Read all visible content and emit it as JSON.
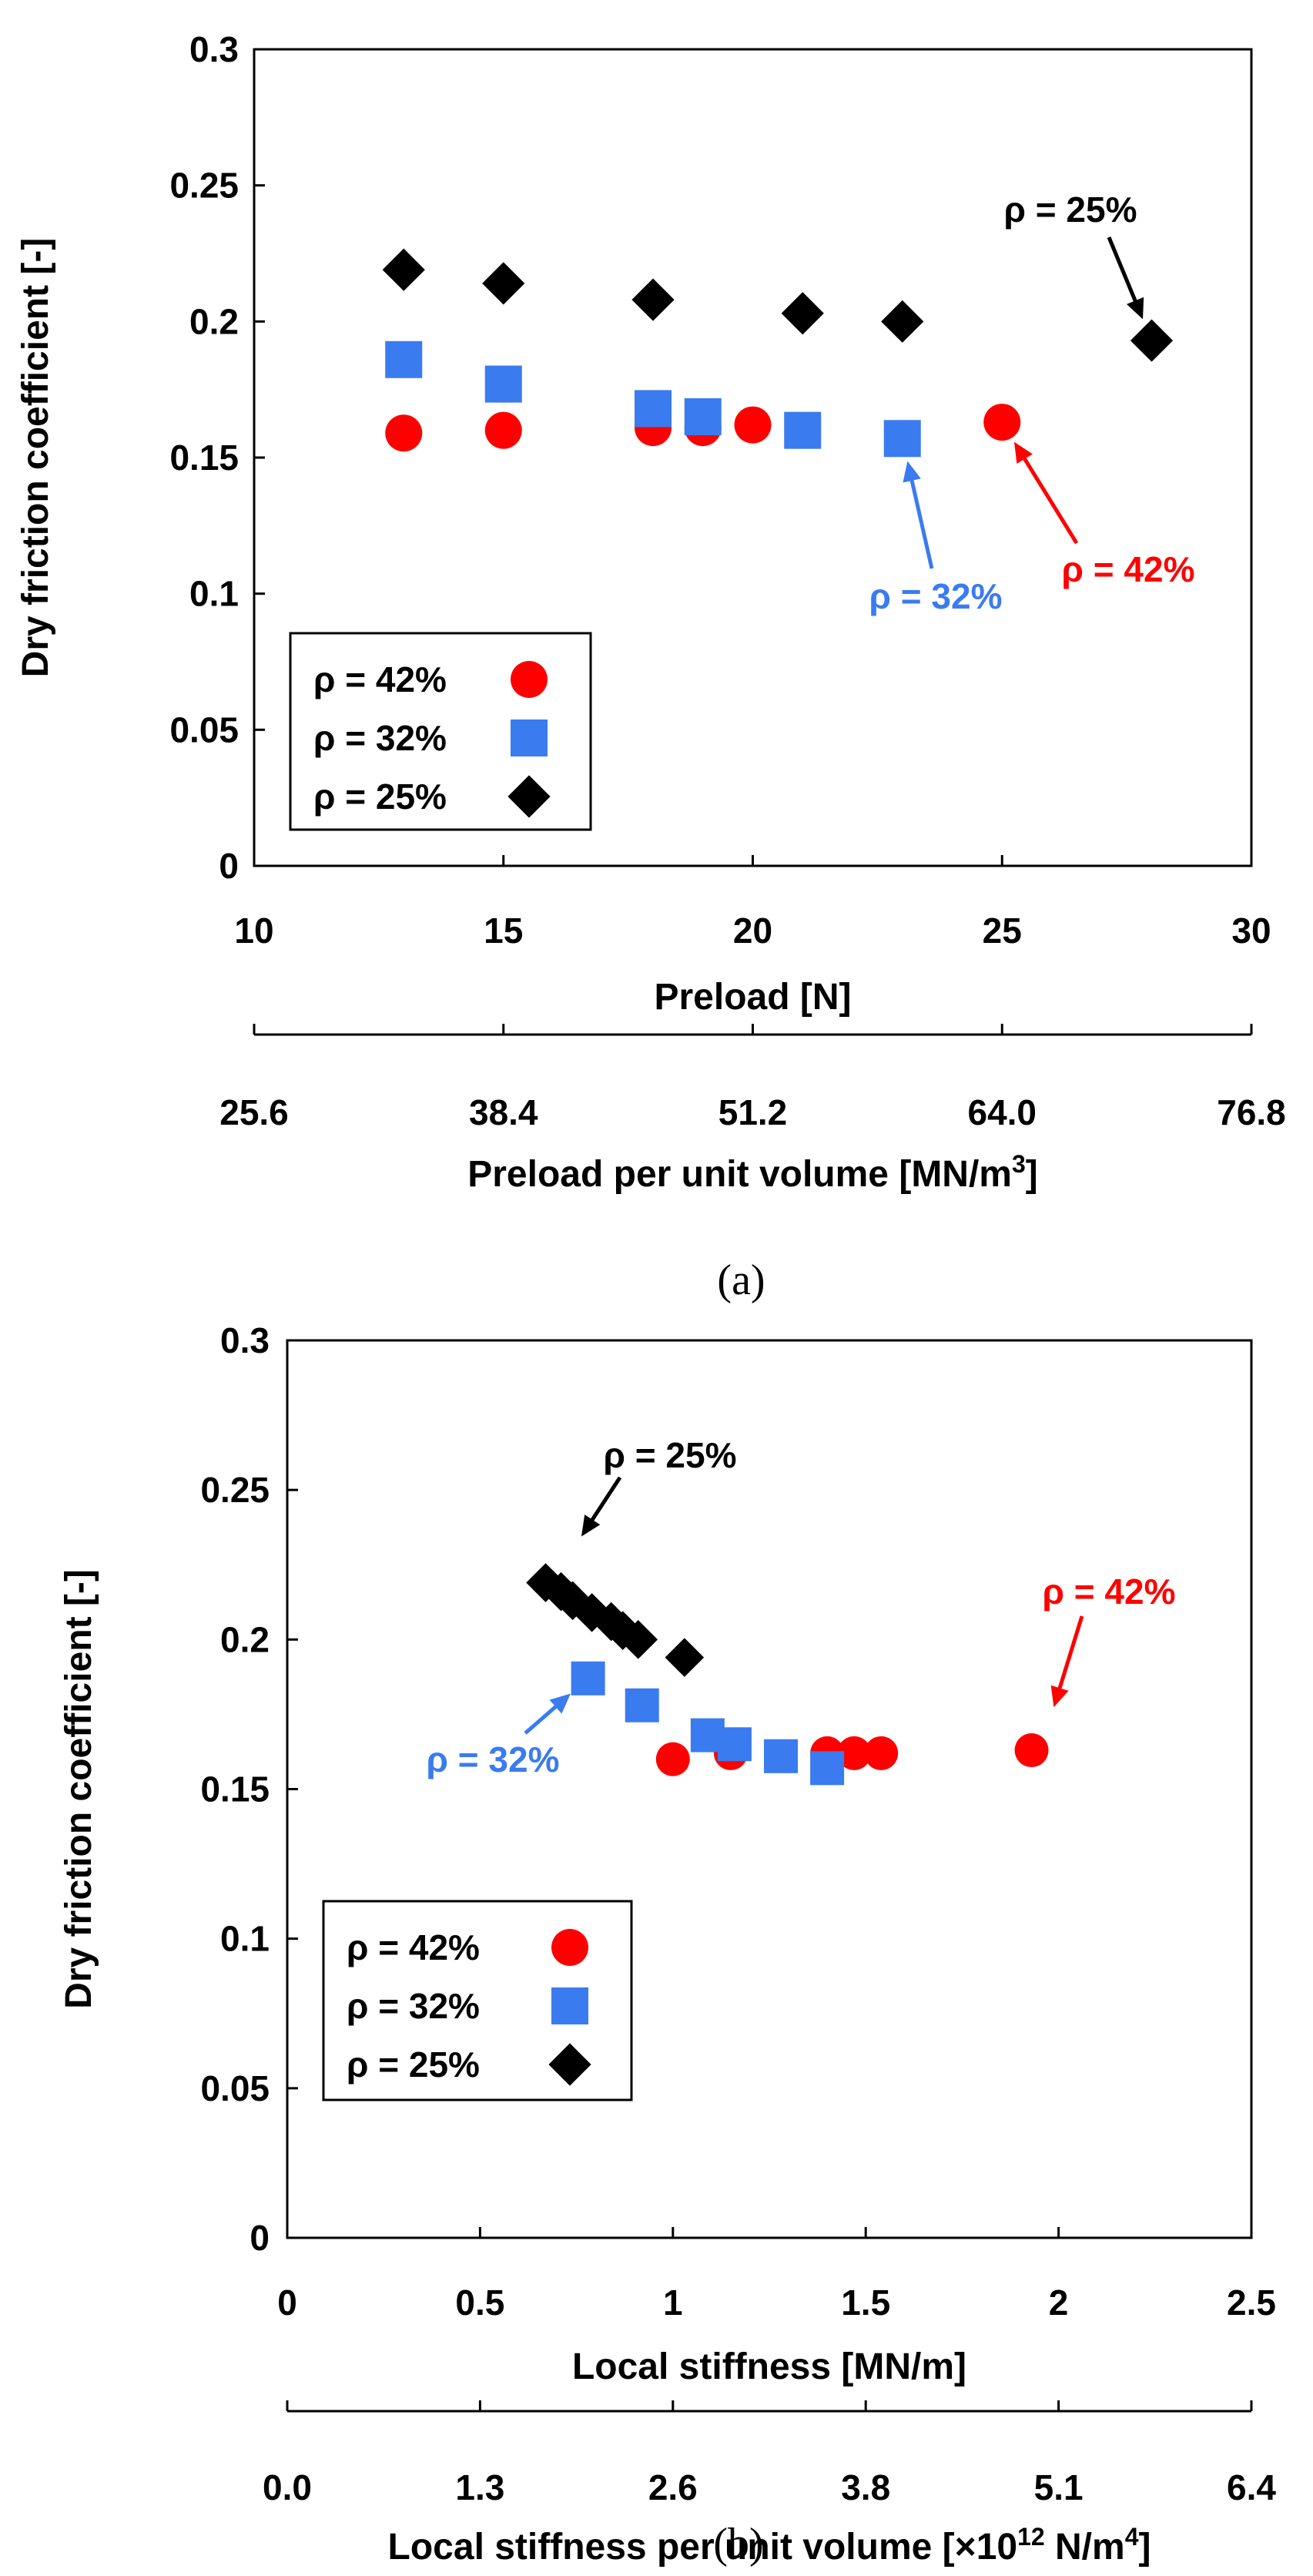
{
  "colors": {
    "rho42": "#ff0000",
    "rho32": "#3a7bf0",
    "rho25": "#000000",
    "axis": "#000000"
  },
  "chart_data": [
    {
      "type": "scatter",
      "panel_label": "(a)",
      "xlabel": "Preload [N]",
      "ylabel": "Dry friction coefficient [-]",
      "xlim": [
        10,
        30
      ],
      "ylim": [
        0,
        0.3
      ],
      "xticks": [
        "10",
        "15",
        "20",
        "25",
        "30"
      ],
      "yticks": [
        "0",
        "0.05",
        "0.1",
        "0.15",
        "0.2",
        "0.25",
        "0.3"
      ],
      "secondary_axis": {
        "label": "Preload per unit volume [MN/m",
        "label_superscript": "3",
        "label_suffix": "]",
        "ticks": [
          "25.6",
          "38.4",
          "51.2",
          "64.0",
          "76.8"
        ]
      },
      "legend": {
        "placement": "lower-left",
        "entries": [
          "ρ = 42%",
          "ρ = 32%",
          "ρ = 25%"
        ]
      },
      "series": [
        {
          "name": "ρ = 42%",
          "marker": "circle",
          "x": [
            13,
            15,
            18,
            19,
            20,
            25
          ],
          "y": [
            0.159,
            0.16,
            0.161,
            0.161,
            0.162,
            0.163
          ]
        },
        {
          "name": "ρ = 32%",
          "marker": "square",
          "x": [
            13,
            15,
            18,
            19,
            21,
            23
          ],
          "y": [
            0.186,
            0.177,
            0.168,
            0.165,
            0.16,
            0.157
          ]
        },
        {
          "name": "ρ = 25%",
          "marker": "diamond",
          "x": [
            13,
            15,
            18,
            21,
            23,
            28
          ],
          "y": [
            0.219,
            0.214,
            0.208,
            0.203,
            0.2,
            0.193
          ]
        }
      ],
      "annotations": [
        {
          "text": "ρ = 25%",
          "series": "ρ = 25%",
          "points_to": [
            28,
            0.193
          ]
        },
        {
          "text": "ρ = 32%",
          "series": "ρ = 32%",
          "points_to": [
            23,
            0.157
          ]
        },
        {
          "text": "ρ = 42%",
          "series": "ρ = 42%",
          "points_to": [
            25,
            0.163
          ]
        }
      ]
    },
    {
      "type": "scatter",
      "panel_label": "(b)",
      "xlabel": "Local stiffness [MN/m]",
      "ylabel": "Dry friction coefficient [-]",
      "xlim": [
        0,
        2.5
      ],
      "ylim": [
        0,
        0.3
      ],
      "xticks": [
        "0",
        "0.5",
        "1",
        "1.5",
        "2",
        "2.5"
      ],
      "yticks": [
        "0",
        "0.05",
        "0.1",
        "0.15",
        "0.2",
        "0.25",
        "0.3"
      ],
      "secondary_axis": {
        "label": "Local stiffness per unit volume [×10",
        "label_superscript": "12",
        "label_middle": " N/m",
        "label_superscript2": "4",
        "label_suffix": "]",
        "ticks": [
          "0.0",
          "1.3",
          "2.6",
          "3.8",
          "5.1",
          "6.4"
        ]
      },
      "legend": {
        "placement": "lower-left",
        "entries": [
          "ρ = 42%",
          "ρ = 32%",
          "ρ = 25%"
        ]
      },
      "series": [
        {
          "name": "ρ = 42%",
          "marker": "circle",
          "x": [
            1.0,
            1.15,
            1.4,
            1.47,
            1.54,
            1.93
          ],
          "y": [
            0.16,
            0.162,
            0.162,
            0.162,
            0.162,
            0.163
          ]
        },
        {
          "name": "ρ = 32%",
          "marker": "square",
          "x": [
            0.78,
            0.92,
            1.09,
            1.16,
            1.28,
            1.4
          ],
          "y": [
            0.187,
            0.178,
            0.168,
            0.165,
            0.161,
            0.157
          ]
        },
        {
          "name": "ρ = 25%",
          "marker": "diamond",
          "x": [
            0.67,
            0.71,
            0.74,
            0.79,
            0.84,
            0.87,
            0.91,
            1.03
          ],
          "y": [
            0.219,
            0.216,
            0.213,
            0.209,
            0.206,
            0.203,
            0.2,
            0.194
          ]
        }
      ],
      "annotations": [
        {
          "text": "ρ = 25%",
          "series": "ρ = 25%",
          "points_to": [
            0.73,
            0.228
          ]
        },
        {
          "text": "ρ = 32%",
          "series": "ρ = 32%",
          "points_to": [
            0.78,
            0.187
          ]
        },
        {
          "text": "ρ = 42%",
          "series": "ρ = 42%",
          "points_to": [
            1.97,
            0.17
          ]
        }
      ]
    }
  ]
}
